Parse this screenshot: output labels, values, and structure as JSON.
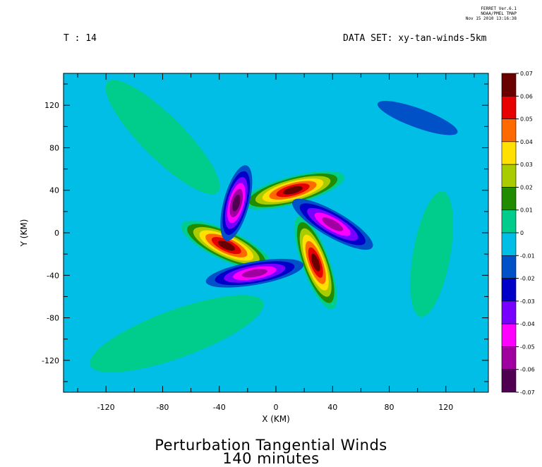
{
  "header": {
    "stamp_line1": "FERRET  Ver.6.1",
    "stamp_line2": "NOAA/PMEL TMAP",
    "stamp_line3": "Nov 15 2010 13:16:38",
    "time_label": "T : 14",
    "dataset_label": "DATA SET: xy-tan-winds-5km"
  },
  "titles": {
    "line1": "Perturbation Tangential Winds",
    "line2": "140 minutes"
  },
  "chart_data": {
    "type": "heatmap",
    "subtype": "filled-contour",
    "xlabel": "X (KM)",
    "ylabel": "Y (KM)",
    "xlim": [
      -150,
      150
    ],
    "ylim": [
      -150,
      150
    ],
    "xticks": [
      -120,
      -80,
      -40,
      0,
      40,
      80,
      120
    ],
    "yticks": [
      -120,
      -80,
      -40,
      0,
      40,
      80,
      120
    ],
    "colorbar": {
      "levels": [
        0.07,
        0.06,
        0.05,
        0.04,
        0.03,
        0.02,
        0.01,
        0,
        -0.01,
        -0.02,
        -0.03,
        -0.04,
        -0.05,
        -0.06,
        -0.07
      ],
      "labels": [
        "0.07",
        "0.06",
        "0.05",
        "0.04",
        "0.03",
        "0.02",
        "0.01",
        "0",
        "-0.01",
        "-0.02",
        "-0.03",
        "-0.04",
        "-0.05",
        "-0.06",
        "-0.07"
      ],
      "colors": [
        "#6b0000",
        "#e60000",
        "#ff6a00",
        "#ffe000",
        "#a8cc00",
        "#218c00",
        "#00cc8c",
        "#00bee6",
        "#0050c8",
        "#0000c8",
        "#7800ff",
        "#ff00ff",
        "#a000a0",
        "#500050"
      ]
    },
    "background_level": "-0.01 to 0",
    "features": [
      {
        "name": "positive arm",
        "center": [
          -35,
          -12
        ],
        "peak": 0.07,
        "orientation_deg": -25,
        "extent_km": [
          70,
          28
        ]
      },
      {
        "name": "positive arm",
        "center": [
          12,
          40
        ],
        "peak": 0.07,
        "orientation_deg": 15,
        "extent_km": [
          75,
          26
        ]
      },
      {
        "name": "positive arm",
        "center": [
          28,
          -28
        ],
        "peak": 0.07,
        "orientation_deg": -70,
        "extent_km": [
          70,
          26
        ]
      },
      {
        "name": "negative arm",
        "center": [
          -28,
          28
        ],
        "peak": -0.07,
        "orientation_deg": 75,
        "extent_km": [
          55,
          24
        ]
      },
      {
        "name": "negative arm",
        "center": [
          40,
          8
        ],
        "peak": -0.06,
        "orientation_deg": -30,
        "extent_km": [
          65,
          24
        ]
      },
      {
        "name": "negative arm",
        "center": [
          -15,
          -38
        ],
        "peak": -0.06,
        "orientation_deg": 10,
        "extent_km": [
          70,
          22
        ]
      },
      {
        "name": "outer negative band",
        "center": [
          100,
          108
        ],
        "peak": -0.01,
        "orientation_deg": -20,
        "extent_km": [
          60,
          18
        ]
      },
      {
        "name": "outer positive band",
        "center": [
          -80,
          90
        ],
        "peak": 0.005,
        "orientation_deg": -45,
        "extent_km": [
          110,
          40
        ]
      },
      {
        "name": "outer positive band",
        "center": [
          -70,
          -95
        ],
        "peak": 0.005,
        "orientation_deg": 20,
        "extent_km": [
          130,
          45
        ]
      },
      {
        "name": "outer positive band",
        "center": [
          110,
          -20
        ],
        "peak": 0.005,
        "orientation_deg": 80,
        "extent_km": [
          90,
          35
        ]
      }
    ]
  }
}
